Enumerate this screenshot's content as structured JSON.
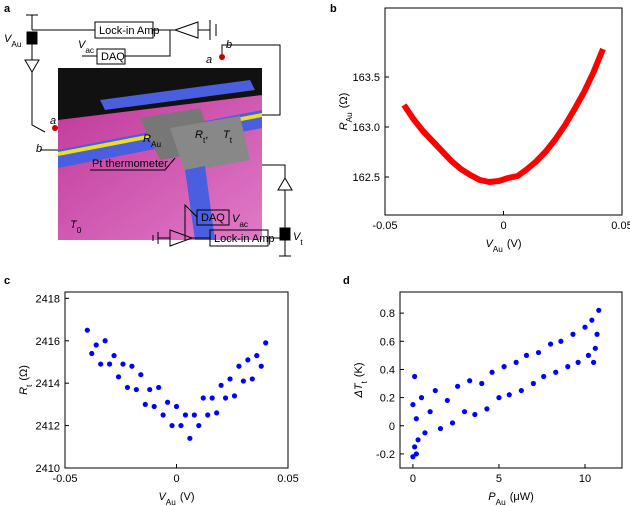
{
  "diagram": {
    "panel": "a",
    "labels": [
      {
        "main": "V",
        "sub": "Au"
      },
      {
        "main": "V",
        "sub": "ac"
      },
      {
        "main": "Lock-in Amp"
      },
      {
        "main": "DAQ"
      },
      {
        "main": "a"
      },
      {
        "main": "b"
      },
      {
        "main": "a"
      },
      {
        "main": "b"
      },
      {
        "main": "R",
        "sub": "Au"
      },
      {
        "main": "R",
        "sub": "t",
        "tail": ","
      },
      {
        "main": "T",
        "sub": "t"
      },
      {
        "main": "Pt thermometer"
      },
      {
        "main": "T",
        "sub": "0"
      },
      {
        "main": "DAQ"
      },
      {
        "main": "V",
        "sub": "ac"
      },
      {
        "main": "Lock-in Amp"
      },
      {
        "main": "V",
        "sub": "t"
      }
    ]
  },
  "chart_data": [
    {
      "panel": "b",
      "type": "line",
      "color": "#ff0000",
      "x": [
        -0.042,
        -0.038,
        -0.034,
        -0.03,
        -0.026,
        -0.022,
        -0.018,
        -0.014,
        -0.01,
        -0.006,
        -0.002,
        0.002,
        0.006,
        0.01,
        0.014,
        0.018,
        0.022,
        0.026,
        0.03,
        0.034,
        0.038,
        0.042
      ],
      "values": [
        163.22,
        163.08,
        162.96,
        162.86,
        162.76,
        162.66,
        162.58,
        162.52,
        162.47,
        162.45,
        162.46,
        162.49,
        162.51,
        162.58,
        162.66,
        162.76,
        162.88,
        163.02,
        163.18,
        163.35,
        163.55,
        163.78
      ],
      "xlim": [
        -0.05,
        0.05
      ],
      "ylim": [
        162.12,
        164.19
      ],
      "xticks": [
        -0.05,
        0,
        0.05
      ],
      "yticks": [
        {
          "value": 162.5,
          "label": "162.5"
        },
        {
          "value": 163,
          "label": "163.0"
        },
        {
          "value": 163.5,
          "label": "163.5"
        }
      ],
      "x_label": {
        "main": "V",
        "sub": "Au",
        "unit": "(V)"
      },
      "y_label": {
        "main": "R",
        "sub": "Au",
        "unit": "(Ω)"
      }
    },
    {
      "panel": "c",
      "type": "scatter",
      "color": "#0000ff",
      "x": [
        -0.04,
        -0.038,
        -0.036,
        -0.034,
        -0.032,
        -0.03,
        -0.028,
        -0.026,
        -0.024,
        -0.022,
        -0.02,
        -0.018,
        -0.016,
        -0.014,
        -0.012,
        -0.01,
        -0.008,
        -0.006,
        -0.004,
        -0.002,
        0,
        0.002,
        0.004,
        0.006,
        0.008,
        0.01,
        0.012,
        0.014,
        0.016,
        0.018,
        0.02,
        0.022,
        0.024,
        0.026,
        0.028,
        0.03,
        0.032,
        0.034,
        0.036,
        0.038,
        0.04
      ],
      "values": [
        2416.5,
        2415.4,
        2415.8,
        2414.9,
        2416.0,
        2414.9,
        2415.3,
        2414.3,
        2414.9,
        2413.8,
        2414.8,
        2413.7,
        2414.4,
        2413.0,
        2413.7,
        2412.9,
        2413.8,
        2412.5,
        2413.1,
        2412.0,
        2412.9,
        2412.0,
        2412.5,
        2411.4,
        2412.5,
        2412.0,
        2413.3,
        2412.5,
        2413.3,
        2412.6,
        2413.9,
        2413.3,
        2414.2,
        2413.4,
        2414.8,
        2414.1,
        2415.1,
        2414.2,
        2415.3,
        2414.8,
        2415.9
      ],
      "xlim": [
        -0.05,
        0.05
      ],
      "ylim": [
        2410,
        2418.3
      ],
      "xticks": [
        -0.05,
        0,
        0.05
      ],
      "yticks": [
        2410,
        2412,
        2414,
        2416,
        2418
      ],
      "x_label": {
        "main": "V",
        "sub": "Au",
        "unit": "(V)"
      },
      "y_label": {
        "main": "R",
        "sub": "t",
        "unit": "(Ω)"
      }
    },
    {
      "panel": "d",
      "type": "scatter",
      "color": "#0000ff",
      "x": [
        0,
        0.1,
        0.2,
        0.3,
        0.5,
        0.7,
        1,
        1.3,
        1.6,
        2,
        2.3,
        2.6,
        3,
        3.3,
        3.6,
        4,
        4.3,
        4.6,
        5,
        5.3,
        5.6,
        6,
        6.3,
        6.6,
        7,
        7.3,
        7.6,
        8,
        8.3,
        8.6,
        9,
        9.3,
        9.6,
        10,
        10.2,
        10.4,
        10.6,
        10.8,
        0,
        0.1,
        0.2,
        10.5,
        10.7
      ],
      "values": [
        0.15,
        -0.15,
        0.05,
        -0.1,
        0.2,
        -0.05,
        0.1,
        0.25,
        -0.02,
        0.18,
        0.02,
        0.28,
        0.1,
        0.32,
        0.08,
        0.3,
        0.12,
        0.38,
        0.2,
        0.42,
        0.22,
        0.45,
        0.25,
        0.5,
        0.3,
        0.52,
        0.35,
        0.58,
        0.38,
        0.6,
        0.42,
        0.65,
        0.45,
        0.7,
        0.5,
        0.75,
        0.55,
        0.82,
        -0.22,
        0.35,
        -0.2,
        0.45,
        0.65
      ],
      "xlim": [
        -0.75,
        12.15
      ],
      "ylim": [
        -0.3,
        0.95
      ],
      "xticks": [
        0,
        5,
        10
      ],
      "yticks": [
        -0.2,
        0,
        0.2,
        0.4,
        0.6,
        0.8
      ],
      "x_label": {
        "main": "P",
        "sub": "Au",
        "unit": "(μW)"
      },
      "y_label": {
        "main": "ΔT",
        "sub": "t",
        "unit": "(K)"
      }
    }
  ]
}
